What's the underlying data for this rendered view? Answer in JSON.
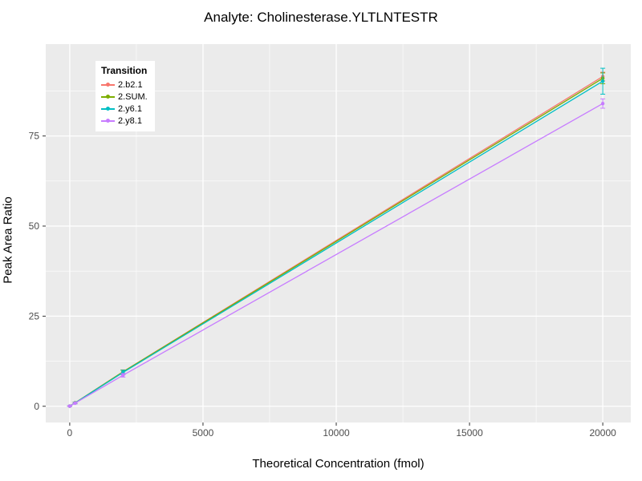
{
  "figure": {
    "background": "#FFFFFF",
    "panel_background": "#EBEBEB",
    "grid_color": "#FFFFFF",
    "tick_label_color": "#4D4D4D",
    "tick_mark_color": "#333333"
  },
  "chart_data": {
    "type": "line",
    "title": "Analyte: Cholinesterase.YLTLNTESTR",
    "xlabel": "Theoretical Concentration (fmol)",
    "ylabel": "Peak Area Ratio",
    "legend_title": "Transition",
    "legend_position": "inside-top-left",
    "grid": true,
    "xlim": [
      -900,
      21050
    ],
    "ylim": [
      -4.5,
      100.5
    ],
    "x_major_ticks": [
      0,
      5000,
      10000,
      15000,
      20000
    ],
    "x_major_tick_labels": [
      "0",
      "5000",
      "10000",
      "15000",
      "20000"
    ],
    "x_minor_ticks": [
      2500,
      7500,
      12500,
      17500
    ],
    "y_major_ticks": [
      0,
      25,
      50,
      75
    ],
    "y_major_tick_labels": [
      "0",
      "25",
      "50",
      "75"
    ],
    "y_minor_ticks": [
      12.5,
      37.5,
      62.5,
      87.5
    ],
    "x": [
      0,
      200,
      2000,
      20000
    ],
    "series": [
      {
        "name": "2.b2.1",
        "color": "#F8766D",
        "y": [
          0.05,
          0.95,
          9.6,
          91.5
        ],
        "yerr": [
          0.1,
          0.2,
          0.5,
          1.2
        ]
      },
      {
        "name": "2.SUM.",
        "color": "#7CAE00",
        "y": [
          0.05,
          0.95,
          9.55,
          91.0
        ],
        "yerr": [
          0.1,
          0.2,
          0.5,
          1.5
        ]
      },
      {
        "name": "2.y6.1",
        "color": "#00BFC4",
        "y": [
          0.05,
          0.9,
          9.4,
          90.2
        ],
        "yerr": [
          0.1,
          0.2,
          0.6,
          3.6
        ]
      },
      {
        "name": "2.y8.1",
        "color": "#C77CFF",
        "y": [
          0.05,
          0.85,
          8.6,
          84.0
        ],
        "yerr": [
          0.1,
          0.2,
          0.5,
          1.3
        ]
      }
    ]
  }
}
